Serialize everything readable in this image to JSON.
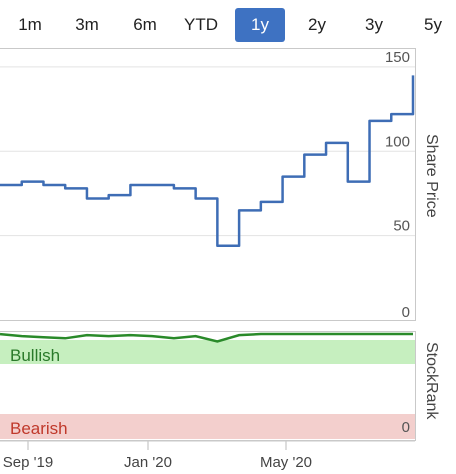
{
  "range_selector": {
    "buttons": [
      "1m",
      "3m",
      "6m",
      "YTD",
      "1y",
      "2y",
      "3y",
      "5y"
    ],
    "selected": "1y",
    "accent": "#3e72c2"
  },
  "chart_data": [
    {
      "type": "line",
      "ylabel": "Share Price",
      "ylim": [
        0,
        160
      ],
      "yticks": [
        0,
        50,
        100,
        150
      ],
      "line_color": "#3e6db5",
      "grid": true,
      "x_ticks": [
        "Sep '19",
        "Jan '20",
        "May '20"
      ],
      "x": [
        "2019-08",
        "2019-09",
        "2019-10",
        "2019-11",
        "2019-12",
        "2020-01",
        "2020-01",
        "2020-02",
        "2020-02",
        "2020-03",
        "2020-03",
        "2020-04",
        "2020-04",
        "2020-05",
        "2020-05",
        "2020-06",
        "2020-06",
        "2020-07",
        "2020-07",
        "2020-08"
      ],
      "series": [
        {
          "values": [
            80,
            82,
            80,
            78,
            72,
            74,
            80,
            80,
            78,
            72,
            44,
            65,
            70,
            85,
            98,
            105,
            82,
            118,
            122,
            145
          ]
        }
      ]
    },
    {
      "type": "area",
      "ylabel": "StockRank",
      "ylim": [
        0,
        100
      ],
      "yticks": [
        0
      ],
      "bands": [
        {
          "label": "Bullish",
          "color": "#c6efbf",
          "text_color": "#2a7a2a"
        },
        {
          "label": "Bearish",
          "color": "#f3cfcd",
          "text_color": "#c0392b"
        }
      ],
      "line_color": "#2a8a2a",
      "x_ticks": [
        "Sep '19",
        "Jan '20",
        "May '20"
      ],
      "series": [
        {
          "values": [
            99,
            97,
            96,
            95,
            98,
            97,
            98,
            97,
            95,
            97,
            92,
            98,
            99,
            99,
            99,
            99,
            99,
            99,
            99,
            99
          ]
        }
      ]
    }
  ]
}
